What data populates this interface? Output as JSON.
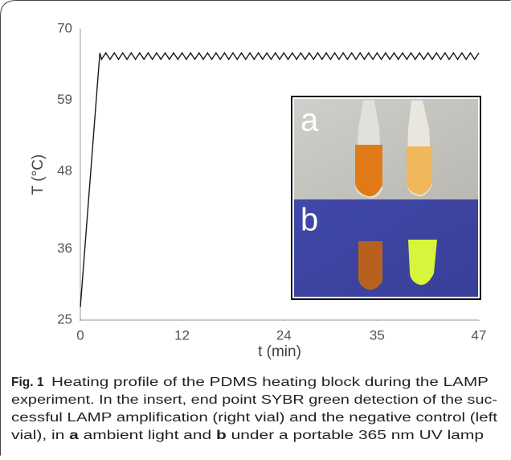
{
  "chart_data": {
    "type": "line",
    "xlabel": "t (min)",
    "ylabel": "T (°C)",
    "color": "#1a1a1a",
    "xlim": [
      0,
      47
    ],
    "xticks": [
      0,
      12,
      24,
      35,
      47
    ],
    "ylim": [
      25,
      70
    ],
    "yticks": [
      25,
      36,
      48,
      59,
      70
    ],
    "x": [
      0,
      2.3,
      2.5,
      3,
      3.5,
      4,
      4.5,
      5,
      5.5,
      6,
      6.5,
      7,
      7.5,
      8,
      8.5,
      9,
      9.5,
      10,
      10.5,
      11,
      11.5,
      12,
      12.5,
      13,
      13.5,
      14,
      14.5,
      15,
      15.5,
      16,
      16.5,
      17,
      17.5,
      18,
      18.5,
      19,
      19.5,
      20,
      20.5,
      21,
      21.5,
      22,
      22.5,
      23,
      23.5,
      24,
      24.5,
      25,
      25.5,
      26,
      26.5,
      27,
      27.5,
      28,
      28.5,
      29,
      29.5,
      30,
      30.5,
      31,
      31.5,
      32,
      32.5,
      33,
      33.5,
      34,
      34.5,
      35,
      35.5,
      36,
      36.5,
      37,
      37.5,
      38,
      38.5,
      39,
      39.5,
      40,
      40.5,
      41,
      41.5,
      42,
      42.5,
      43,
      43.5,
      44,
      44.5,
      45,
      45.5,
      46,
      46.5,
      47
    ],
    "values": [
      27,
      66.3,
      65.3,
      66.3,
      65.3,
      66.3,
      65.3,
      66.3,
      65.3,
      66.3,
      65.3,
      66.3,
      65.3,
      66.3,
      65.3,
      66.3,
      65.3,
      66.3,
      65.3,
      66.3,
      65.3,
      66.3,
      65.3,
      66.3,
      65.3,
      66.3,
      65.3,
      66.3,
      65.3,
      66.3,
      65.3,
      66.3,
      65.3,
      66.3,
      65.3,
      66.3,
      65.3,
      66.3,
      65.3,
      66.3,
      65.3,
      66.3,
      65.3,
      66.3,
      65.3,
      66.3,
      65.3,
      66.3,
      65.3,
      66.3,
      65.3,
      66.3,
      65.3,
      66.3,
      65.3,
      66.3,
      65.3,
      66.3,
      65.3,
      66.3,
      65.3,
      66.3,
      65.3,
      66.3,
      65.3,
      66.3,
      65.3,
      66.3,
      65.3,
      66.3,
      65.3,
      66.3,
      65.3,
      66.3,
      65.3,
      66.3,
      65.3,
      66.3,
      65.3,
      66.3,
      65.3,
      66.3,
      65.3,
      66.3,
      65.3,
      66.3,
      65.3,
      66.3,
      65.3,
      66.3,
      65.3,
      66.3
    ],
    "insert_labels": [
      "a",
      "b"
    ]
  },
  "caption": {
    "label": "Fig. 1",
    "lines": [
      "Heating profile of the PDMS heating block during the LAMP",
      "experiment. In the insert, end point SYBR green detection of the suc-",
      "cessful LAMP amplification (right vial) and the negative control (left"
    ],
    "last_line": [
      "vial), in ",
      "a",
      " ambient light and ",
      "b",
      " under a portable 365 nm UV lamp"
    ]
  }
}
